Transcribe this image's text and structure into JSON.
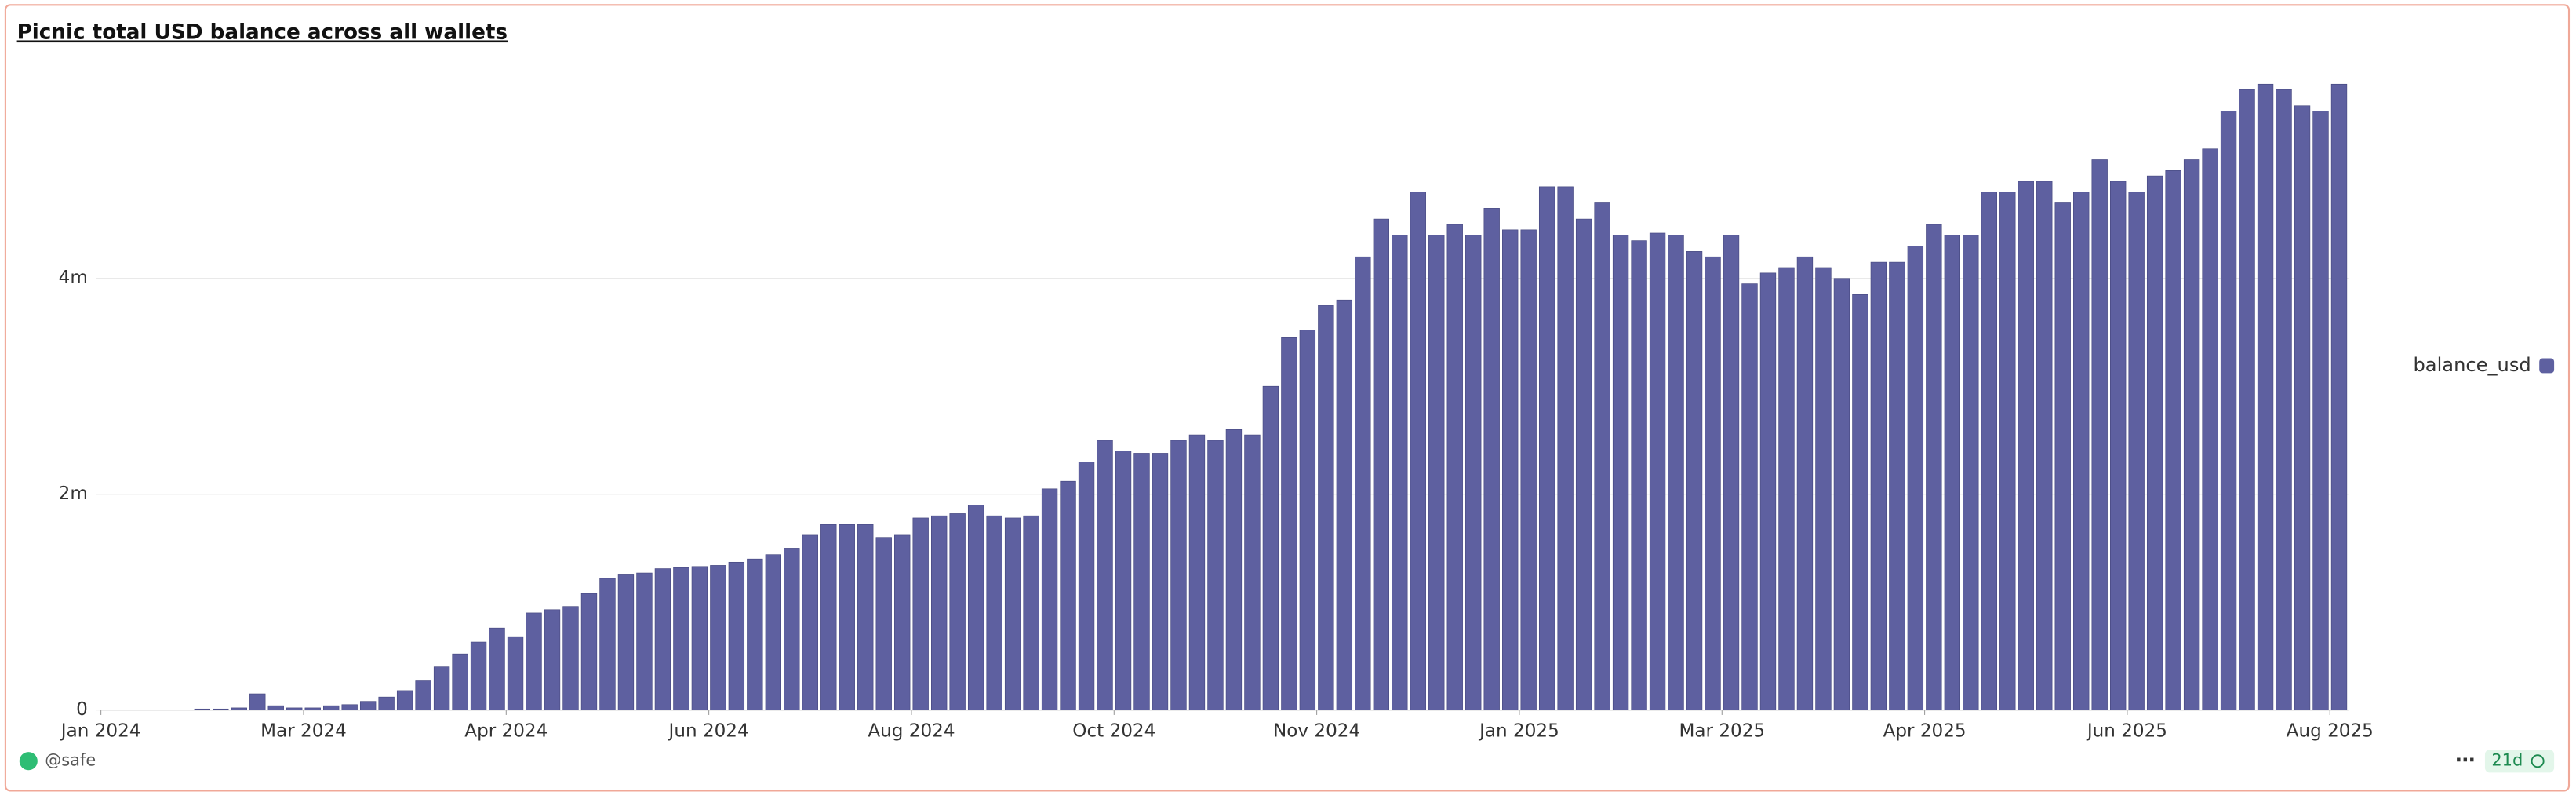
{
  "chart_data": {
    "type": "bar",
    "title": "Picnic total USD balance across all wallets",
    "categories": [
      null,
      null,
      null,
      null,
      null,
      null,
      null,
      null,
      null,
      null,
      null,
      null,
      null,
      null,
      null,
      null,
      null,
      null,
      null,
      null,
      null,
      null,
      null,
      null,
      null,
      null,
      null,
      null,
      null,
      null,
      null,
      null,
      null,
      null,
      null,
      null,
      null,
      null,
      null,
      null,
      null,
      null,
      null,
      null,
      null,
      null,
      null,
      null,
      null,
      null,
      null,
      null,
      null,
      null,
      null,
      null,
      null,
      null,
      null,
      null,
      null,
      null,
      null,
      null,
      null,
      null,
      null,
      null,
      null,
      null,
      null,
      null,
      null,
      null,
      null,
      null,
      null,
      null,
      null,
      null,
      null,
      null,
      null,
      null,
      null,
      null,
      null,
      null,
      null,
      null,
      null,
      null,
      null,
      null,
      null,
      null,
      null,
      null,
      null,
      null,
      null,
      null,
      null,
      null,
      null,
      null,
      null,
      null,
      null,
      null,
      null,
      null,
      null,
      null,
      null,
      null,
      null,
      null,
      null,
      null,
      null,
      null
    ],
    "series": [
      {
        "name": "balance_usd",
        "color": "#5e60a0",
        "values": [
          0,
          0,
          0,
          0,
          0,
          10000,
          10000,
          20000,
          150000,
          40000,
          20000,
          20000,
          40000,
          50000,
          80000,
          120000,
          180000,
          270000,
          400000,
          520000,
          630000,
          760000,
          680000,
          900000,
          930000,
          960000,
          1080000,
          1220000,
          1260000,
          1270000,
          1310000,
          1320000,
          1330000,
          1340000,
          1370000,
          1400000,
          1440000,
          1500000,
          1620000,
          1720000,
          1720000,
          1720000,
          1600000,
          1620000,
          1780000,
          1800000,
          1820000,
          1900000,
          1800000,
          1780000,
          1800000,
          2050000,
          2120000,
          2300000,
          2500000,
          2400000,
          2380000,
          2380000,
          2500000,
          2550000,
          2500000,
          2600000,
          2550000,
          3000000,
          3450000,
          3520000,
          3750000,
          3800000,
          4200000,
          4550000,
          4400000,
          4800000,
          4400000,
          4500000,
          4400000,
          4650000,
          4450000,
          4450000,
          4850000,
          4850000,
          4550000,
          4700000,
          4400000,
          4350000,
          4420000,
          4400000,
          4250000,
          4200000,
          4400000,
          3950000,
          4050000,
          4100000,
          4200000,
          4100000,
          4000000,
          3850000,
          4150000,
          4150000,
          4300000,
          4500000,
          4400000,
          4400000,
          4800000,
          4800000,
          4900000,
          4900000,
          4700000,
          4800000,
          5100000,
          4900000,
          4800000,
          4950000,
          5000000,
          5100000,
          5200000,
          5550000,
          5750000,
          5800000,
          5750000,
          5600000,
          5550000,
          5800000
        ]
      }
    ],
    "xticks": [
      {
        "value": 0,
        "label": "Jan 2024"
      },
      {
        "value": 11,
        "label": "Mar 2024"
      },
      {
        "value": 22,
        "label": "Apr 2024"
      },
      {
        "value": 33,
        "label": "Jun 2024"
      },
      {
        "value": 44,
        "label": "Aug 2024"
      },
      {
        "value": 55,
        "label": "Oct 2024"
      },
      {
        "value": 66,
        "label": "Nov 2024"
      },
      {
        "value": 77,
        "label": "Jan 2025"
      },
      {
        "value": 88,
        "label": "Mar 2025"
      },
      {
        "value": 99,
        "label": "Apr 2025"
      },
      {
        "value": 110,
        "label": "Jun 2025"
      },
      {
        "value": 121,
        "label": "Aug 2025"
      }
    ],
    "ylim": [
      0,
      6000000
    ],
    "yticks": [
      0,
      {
        "value": 2000000,
        "label": "2m"
      },
      {
        "value": 4000000,
        "label": "4m"
      }
    ],
    "grid": true,
    "legend": "right"
  },
  "footer": {
    "author": "@safe",
    "age": "21d"
  }
}
